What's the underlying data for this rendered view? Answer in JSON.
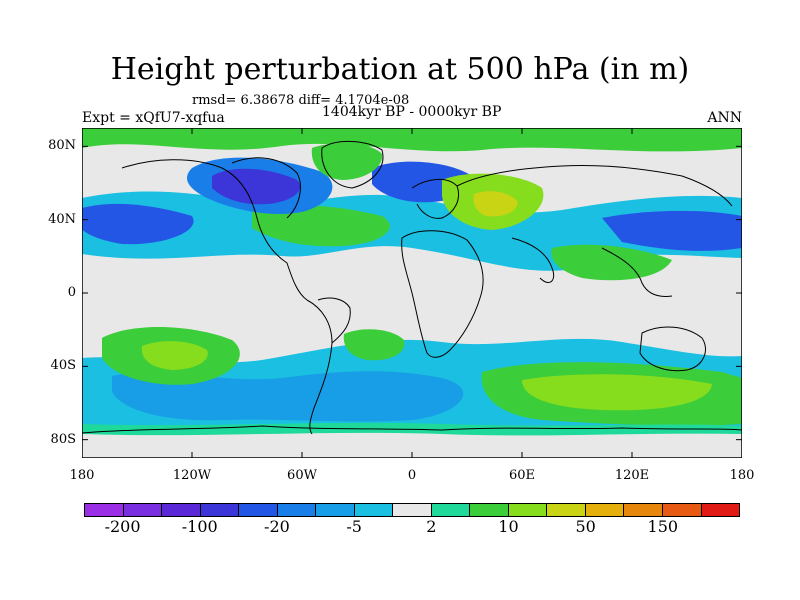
{
  "title": "Height perturbation at 500 hPa (in m)",
  "stats": "rmsd= 6.38678 diff= 4.1704e-08",
  "experiment": "Expt = xQfU7-xqfua",
  "period": "1404kyr BP - 0000kyr BP",
  "season": "ANN",
  "map": {
    "lat_range": [
      -90,
      90
    ],
    "lon_range": [
      -180,
      180
    ],
    "lat_ticks": [
      {
        "value": 80,
        "label": "80N"
      },
      {
        "value": 40,
        "label": "40N"
      },
      {
        "value": 0,
        "label": "0"
      },
      {
        "value": -40,
        "label": "40S"
      },
      {
        "value": -80,
        "label": "80S"
      }
    ],
    "lon_ticks": [
      {
        "value": -180,
        "label": "180"
      },
      {
        "value": -120,
        "label": "120W"
      },
      {
        "value": -60,
        "label": "60W"
      },
      {
        "value": 0,
        "label": "0"
      },
      {
        "value": 60,
        "label": "60E"
      },
      {
        "value": 120,
        "label": "120E"
      },
      {
        "value": 180,
        "label": "180"
      }
    ]
  },
  "colorbar": {
    "colors": [
      "#9a2fe6",
      "#7a2fe0",
      "#5a28d6",
      "#3c36d8",
      "#2456e6",
      "#1a7ee8",
      "#189ee6",
      "#1bbfe2",
      "#e8e8e8",
      "#1fd99a",
      "#3ccd3a",
      "#86dd1e",
      "#c8d414",
      "#e6b00c",
      "#e6860a",
      "#e65a14",
      "#e01a14"
    ],
    "labels": [
      {
        "text": "-200",
        "boundary": 1
      },
      {
        "text": "-100",
        "boundary": 3
      },
      {
        "text": "-20",
        "boundary": 5
      },
      {
        "text": "-5",
        "boundary": 7
      },
      {
        "text": "2",
        "boundary": 9
      },
      {
        "text": "10",
        "boundary": 11
      },
      {
        "text": "50",
        "boundary": 13
      },
      {
        "text": "150",
        "boundary": 15
      }
    ]
  },
  "field_regions": [
    {
      "level": -3,
      "kind": "low",
      "lon": -95,
      "lat": 60,
      "rlon": 32,
      "rlat": 12
    },
    {
      "level": -3,
      "kind": "low",
      "lon": -5,
      "lat": 58,
      "rlon": 18,
      "rlat": 8
    },
    {
      "level": -2,
      "kind": "low",
      "lon": 20,
      "lat": 70,
      "rlon": 12,
      "rlat": 5
    },
    {
      "level": 2,
      "kind": "high",
      "lon": 45,
      "lat": 50,
      "rlon": 22,
      "rlat": 10
    },
    {
      "level": 2,
      "kind": "high",
      "lon": -50,
      "lat": 73,
      "rlon": 16,
      "rlat": 8
    },
    {
      "level": 1,
      "kind": "high",
      "lon": -70,
      "lat": 35,
      "rlon": 22,
      "rlat": 8
    },
    {
      "level": 1,
      "kind": "high",
      "lon": -150,
      "lat": -30,
      "rlon": 22,
      "rlat": 8
    },
    {
      "level": 1,
      "kind": "high",
      "lon": -18,
      "lat": -28,
      "rlon": 12,
      "rlat": 5
    },
    {
      "level": 1,
      "kind": "high",
      "lon": 120,
      "lat": -55,
      "rlon": 40,
      "rlat": 8
    }
  ]
}
